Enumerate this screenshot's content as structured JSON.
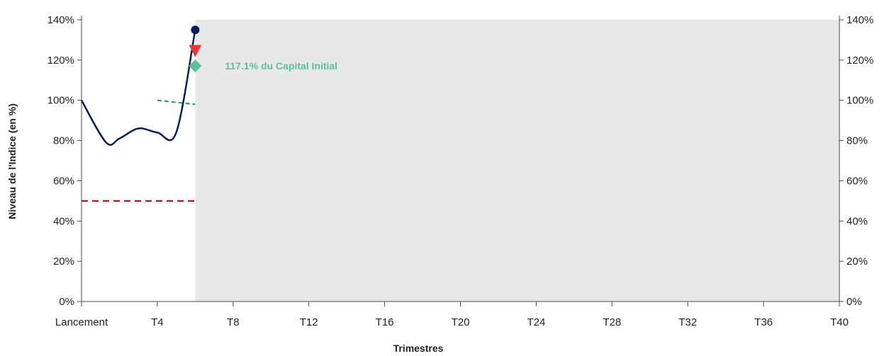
{
  "chart_data": {
    "type": "line",
    "xlabel": "Trimestres",
    "ylabel": "Niveau de l'Indice (en %)",
    "x_ticks": [
      "Lancement",
      "T4",
      "T8",
      "T12",
      "T16",
      "T20",
      "T24",
      "T28",
      "T32",
      "T36",
      "T40"
    ],
    "x_tick_values": [
      0,
      4,
      8,
      12,
      16,
      20,
      24,
      28,
      32,
      36,
      40
    ],
    "xlim": [
      0,
      40
    ],
    "y_ticks": [
      "0%",
      "20%",
      "40%",
      "60%",
      "80%",
      "100%",
      "120%",
      "140%"
    ],
    "y_tick_values": [
      0,
      20,
      40,
      60,
      80,
      100,
      120,
      140
    ],
    "ylim": [
      0,
      140
    ],
    "series": [
      {
        "values": [
          {
            "x": 0,
            "y": 100
          },
          {
            "x": 1.3,
            "y": 79
          },
          {
            "x": 2,
            "y": 81
          },
          {
            "x": 3,
            "y": 86
          },
          {
            "x": 4,
            "y": 84
          },
          {
            "x": 5,
            "y": 84
          },
          {
            "x": 6,
            "y": 135
          }
        ],
        "color": "#0b1f5c"
      }
    ],
    "current_point": {
      "x": 6,
      "y": 135
    },
    "reference_lines": [
      {
        "x_range": [
          0,
          6
        ],
        "y": 50,
        "color": "#c0141a",
        "style": "dashed"
      },
      {
        "x_range": [
          4,
          6
        ],
        "y_range": [
          100,
          98
        ],
        "color": "#2e8c74",
        "style": "dashed"
      }
    ],
    "shaded_region": {
      "x_range": [
        6,
        40
      ],
      "color": "#e8e8e8"
    },
    "markers": [
      {
        "shape": "triangle-down",
        "x": 6,
        "y": 124,
        "color": "#e8383d"
      },
      {
        "shape": "diamond",
        "x": 6,
        "y": 117.1,
        "color": "#5cbf9d"
      }
    ],
    "annotation": {
      "text": "117.1% du Capital Initial",
      "x": 6,
      "y": 117.1,
      "color": "#5cbf9d"
    },
    "grid": false
  }
}
